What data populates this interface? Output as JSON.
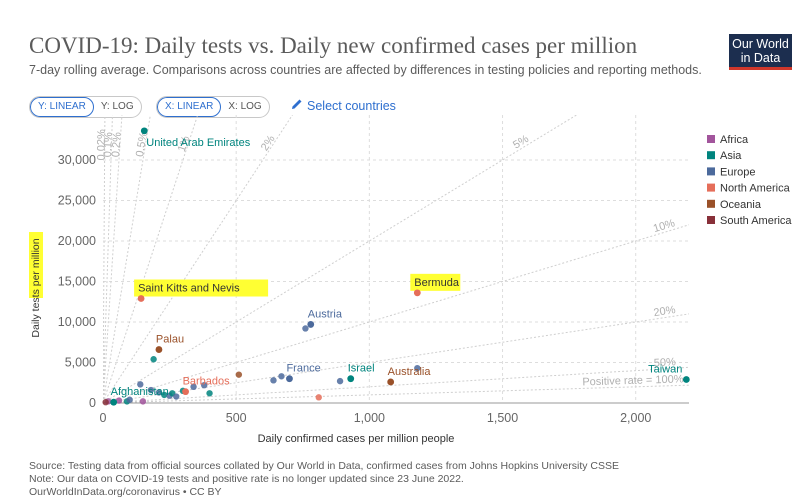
{
  "header": {
    "title": "COVID-19: Daily tests vs. Daily new confirmed cases per million",
    "subtitle": "7-day rolling average. Comparisons across countries are affected by differences in testing policies and reporting methods.",
    "logo_line1": "Our World",
    "logo_line2": "in Data"
  },
  "controls": {
    "y_linear": "Y: LINEAR",
    "y_log": "Y: LOG",
    "x_linear": "X: LINEAR",
    "x_log": "X: LOG",
    "select_countries": "Select countries",
    "accent": "#2e6fcf"
  },
  "legend": [
    {
      "label": "Africa",
      "color": "#a2559c"
    },
    {
      "label": "Asia",
      "color": "#00847e"
    },
    {
      "label": "Europe",
      "color": "#4c6a9c"
    },
    {
      "label": "North America",
      "color": "#e56e5a"
    },
    {
      "label": "Oceania",
      "color": "#9a5129"
    },
    {
      "label": "South America",
      "color": "#883039"
    }
  ],
  "footer": {
    "source": "Source: Testing data from official sources collated by Our World in Data, confirmed cases from Johns Hopkins University CSSE",
    "note": "Note: Our data on COVID-19 tests and positive rate is no longer updated since 23 June 2022.",
    "link": "OurWorldInData.org/coronavirus • CC BY"
  },
  "chart_data": {
    "type": "scatter",
    "xlabel": "Daily confirmed cases per million people",
    "ylabel": "Daily tests per million",
    "xlim": [
      0,
      2200
    ],
    "ylim": [
      0,
      33500
    ],
    "x_ticks": [
      0,
      500,
      1000,
      1500,
      2000
    ],
    "x_tick_labels": [
      "0",
      "500",
      "1,000",
      "1,500",
      "2,000"
    ],
    "y_ticks": [
      0,
      5000,
      10000,
      15000,
      20000,
      25000,
      30000
    ],
    "y_tick_labels": [
      "0",
      "5,000",
      "10,000",
      "15,000",
      "20,000",
      "25,000",
      "30,000"
    ],
    "grid": true,
    "legend_position": "right",
    "reference_lines": [
      {
        "rate": 0.0002,
        "label": "0.02%"
      },
      {
        "rate": 0.001,
        "label": "0.1%"
      },
      {
        "rate": 0.002,
        "label": "0.2%"
      },
      {
        "rate": 0.005,
        "label": "0.5%"
      },
      {
        "rate": 0.01,
        "label": "1%"
      },
      {
        "rate": 0.02,
        "label": "2%"
      },
      {
        "rate": 0.05,
        "label": "5%"
      },
      {
        "rate": 0.1,
        "label": "10%"
      },
      {
        "rate": 0.2,
        "label": "20%"
      },
      {
        "rate": 0.5,
        "label": "50%"
      },
      {
        "rate": 1,
        "label": "Positive rate = 100%"
      }
    ],
    "labeled_points": [
      {
        "name": "United Arab Emirates",
        "x": 155,
        "y": 33600,
        "color": "#00847e"
      },
      {
        "name": "Saint Kitts and Nevis",
        "x": 143,
        "y": 12900,
        "color": "#e56e5a",
        "highlight": true
      },
      {
        "name": "Bermuda",
        "x": 1180,
        "y": 13600,
        "color": "#e56e5a",
        "highlight": true
      },
      {
        "name": "Austria",
        "x": 780,
        "y": 9700,
        "color": "#4c6a9c"
      },
      {
        "name": "Palau",
        "x": 210,
        "y": 6600,
        "color": "#9a5129"
      },
      {
        "name": "France",
        "x": 700,
        "y": 3000,
        "color": "#4c6a9c"
      },
      {
        "name": "Israel",
        "x": 930,
        "y": 3000,
        "color": "#00847e"
      },
      {
        "name": "Australia",
        "x": 1080,
        "y": 2600,
        "color": "#9a5129"
      },
      {
        "name": "Barbados",
        "x": 310,
        "y": 1400,
        "color": "#e56e5a"
      },
      {
        "name": "Afghanistan",
        "x": 40,
        "y": 100,
        "color": "#00847e"
      },
      {
        "name": "Taiwan",
        "x": 2190,
        "y": 2900,
        "color": "#00847e"
      }
    ],
    "other_points": [
      {
        "x": 140,
        "y": 2300,
        "color": "#4c6a9c"
      },
      {
        "x": 190,
        "y": 5400,
        "color": "#00847e"
      },
      {
        "x": 180,
        "y": 1600,
        "color": "#4c6a9c"
      },
      {
        "x": 210,
        "y": 1300,
        "color": "#4c6a9c"
      },
      {
        "x": 230,
        "y": 1000,
        "color": "#00847e"
      },
      {
        "x": 250,
        "y": 900,
        "color": "#4c6a9c"
      },
      {
        "x": 260,
        "y": 1200,
        "color": "#00847e"
      },
      {
        "x": 275,
        "y": 800,
        "color": "#4c6a9c"
      },
      {
        "x": 300,
        "y": 1500,
        "color": "#00847e"
      },
      {
        "x": 340,
        "y": 2000,
        "color": "#4c6a9c"
      },
      {
        "x": 380,
        "y": 2200,
        "color": "#4c6a9c"
      },
      {
        "x": 400,
        "y": 1200,
        "color": "#00847e"
      },
      {
        "x": 510,
        "y": 3500,
        "color": "#9a5129"
      },
      {
        "x": 640,
        "y": 2800,
        "color": "#4c6a9c"
      },
      {
        "x": 670,
        "y": 3300,
        "color": "#4c6a9c"
      },
      {
        "x": 760,
        "y": 9200,
        "color": "#4c6a9c"
      },
      {
        "x": 890,
        "y": 2700,
        "color": "#4c6a9c"
      },
      {
        "x": 810,
        "y": 700,
        "color": "#e56e5a"
      },
      {
        "x": 1180,
        "y": 4300,
        "color": "#4c6a9c"
      },
      {
        "x": 150,
        "y": 200,
        "color": "#a2559c"
      },
      {
        "x": 60,
        "y": 300,
        "color": "#a2559c"
      },
      {
        "x": 90,
        "y": 200,
        "color": "#00847e"
      },
      {
        "x": 100,
        "y": 400,
        "color": "#4c6a9c"
      },
      {
        "x": 20,
        "y": 200,
        "color": "#a2559c"
      },
      {
        "x": 10,
        "y": 100,
        "color": "#883039"
      }
    ]
  }
}
